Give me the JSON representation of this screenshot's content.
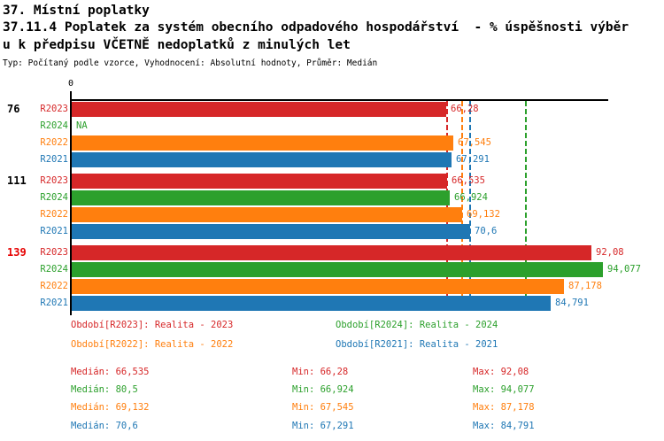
{
  "header": {
    "title": "37. Místní poplatky",
    "subtitle_line1": "37.11.4 Poplatek za systém obecního odpadového hospodářství  - % úspěšnosti výběr",
    "subtitle_line2": "u k předpisu VČETNĚ nedoplatků z minulých let",
    "meta": "Typ: Počítaný podle vzorce, Vyhodnocení: Absolutní hodnoty, Průměr: Medián"
  },
  "colors": {
    "R2023": "#d62728",
    "R2024": "#2ca02c",
    "R2022": "#ff7f0e",
    "R2021": "#1f77b4",
    "alert_label": "#e60000",
    "axis": "#000000"
  },
  "chart_data": {
    "type": "bar",
    "orientation": "horizontal",
    "axis_origin_label": "0",
    "x_min": 0,
    "x_max": 95.3,
    "grid": false,
    "series_order": [
      "R2023",
      "R2024",
      "R2022",
      "R2021"
    ],
    "groups": [
      {
        "label": "76",
        "label_color": "#000000",
        "bars": [
          {
            "series": "R2023",
            "value": 66.28,
            "display": "66,28"
          },
          {
            "series": "R2024",
            "value": null,
            "display": "NA"
          },
          {
            "series": "R2022",
            "value": 67.545,
            "display": "67,545"
          },
          {
            "series": "R2021",
            "value": 67.291,
            "display": "67,291"
          }
        ]
      },
      {
        "label": "111",
        "label_color": "#000000",
        "bars": [
          {
            "series": "R2023",
            "value": 66.535,
            "display": "66,535"
          },
          {
            "series": "R2024",
            "value": 66.924,
            "display": "66,924"
          },
          {
            "series": "R2022",
            "value": 69.132,
            "display": "69,132"
          },
          {
            "series": "R2021",
            "value": 70.6,
            "display": "70,6"
          }
        ]
      },
      {
        "label": "139",
        "label_color": "#e60000",
        "bars": [
          {
            "series": "R2023",
            "value": 92.08,
            "display": "92,08"
          },
          {
            "series": "R2024",
            "value": 94.077,
            "display": "94,077"
          },
          {
            "series": "R2022",
            "value": 87.178,
            "display": "87,178"
          },
          {
            "series": "R2021",
            "value": 84.791,
            "display": "84,791"
          }
        ]
      }
    ],
    "medians": [
      {
        "series": "R2023",
        "value": 66.535
      },
      {
        "series": "R2024",
        "value": 80.5
      },
      {
        "series": "R2022",
        "value": 69.132
      },
      {
        "series": "R2021",
        "value": 70.6
      }
    ]
  },
  "legend": [
    {
      "series": "R2023",
      "label": "Období[R2023]: Realita - 2023"
    },
    {
      "series": "R2024",
      "label": "Období[R2024]: Realita - 2024"
    },
    {
      "series": "R2022",
      "label": "Období[R2022]: Realita - 2022"
    },
    {
      "series": "R2021",
      "label": "Období[R2021]: Realita - 2021"
    }
  ],
  "stats": [
    {
      "series": "R2023",
      "median_text": "Medián: 66,535",
      "min_text": "Min: 66,28",
      "max_text": "Max: 92,08"
    },
    {
      "series": "R2024",
      "median_text": "Medián: 80,5",
      "min_text": "Min: 66,924",
      "max_text": "Max: 94,077"
    },
    {
      "series": "R2022",
      "median_text": "Medián: 69,132",
      "min_text": "Min: 67,545",
      "max_text": "Max: 87,178"
    },
    {
      "series": "R2021",
      "median_text": "Medián: 70,6",
      "min_text": "Min: 67,291",
      "max_text": "Max: 84,791"
    }
  ]
}
